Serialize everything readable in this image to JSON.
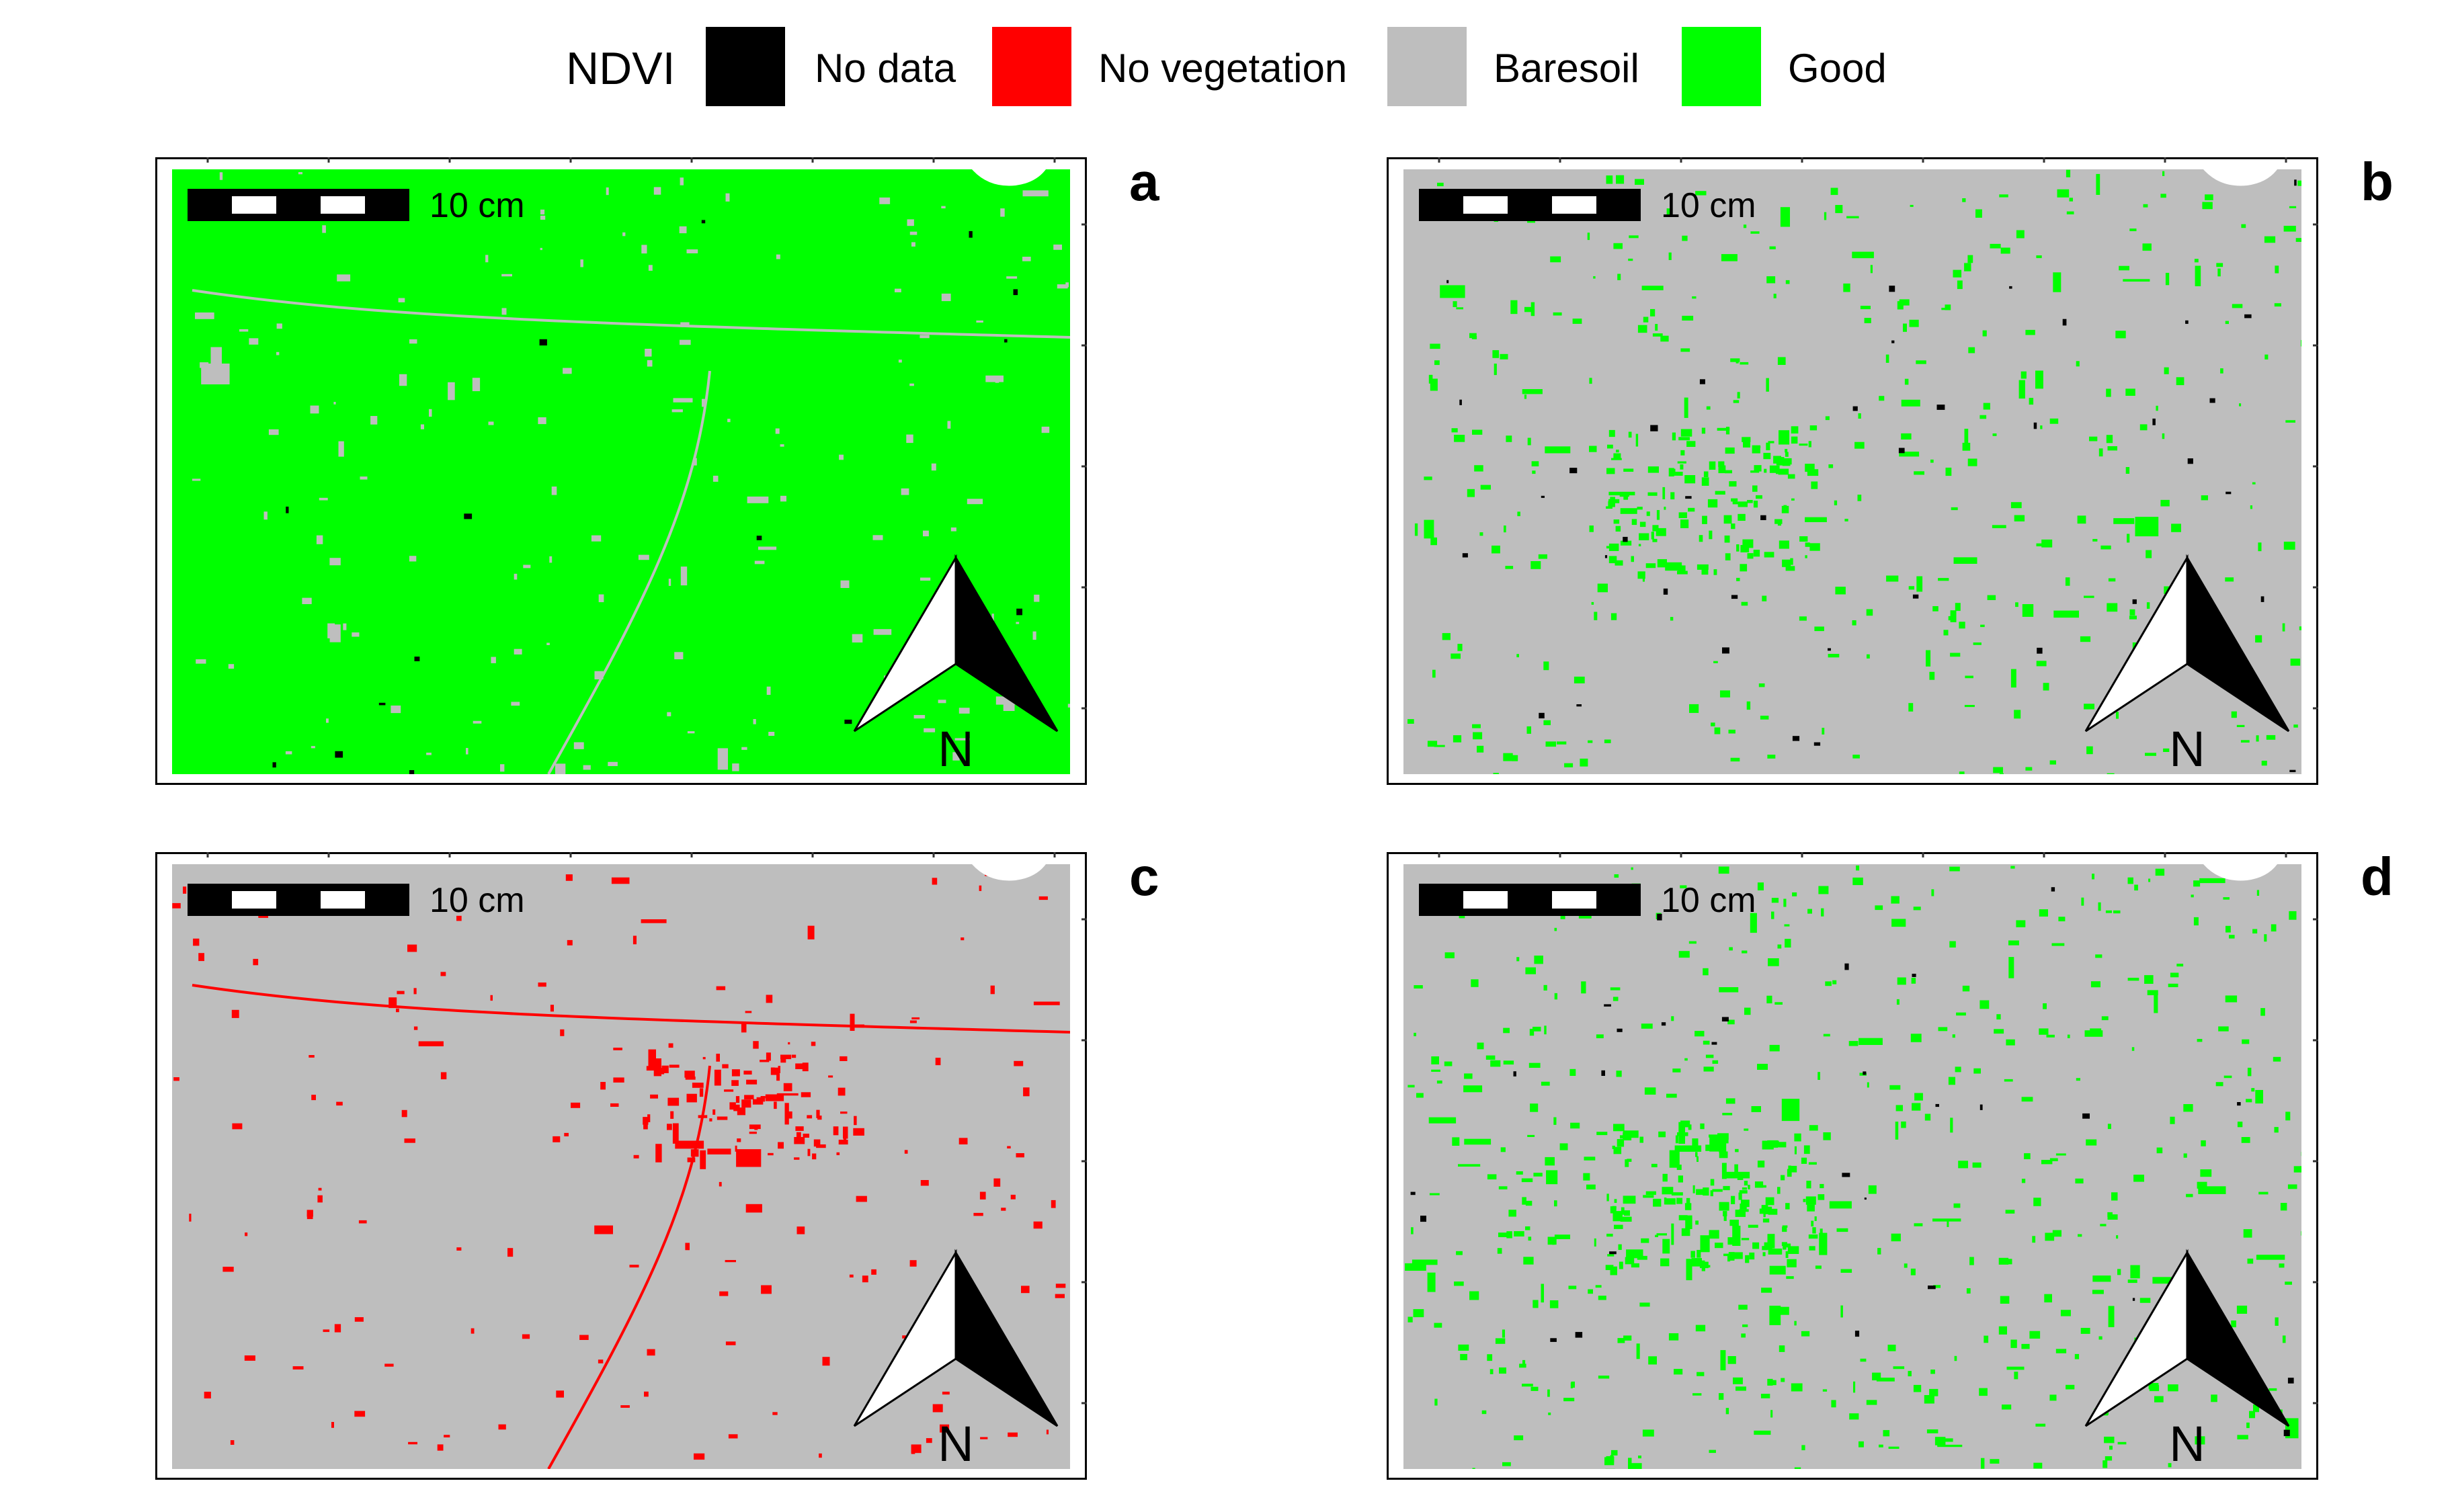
{
  "legend": {
    "title": "NDVI",
    "items": [
      {
        "label": "No data",
        "color": "#000000"
      },
      {
        "label": "No vegetation",
        "color": "#ff0000"
      },
      {
        "label": "Baresoil",
        "color": "#bebebe"
      },
      {
        "label": "Good",
        "color": "#00ff00"
      }
    ]
  },
  "scale_bar_label": "10 cm",
  "north_label": "N",
  "panels": [
    {
      "letter": "a",
      "base": "#00ff00",
      "patch": "#bebebe",
      "patch_frac": 0.04,
      "nodata_frac": 0.004
    },
    {
      "letter": "b",
      "base": "#bebebe",
      "patch": "#00ff00",
      "patch_frac": 0.12,
      "nodata_frac": 0.01
    },
    {
      "letter": "c",
      "base": "#bebebe",
      "patch": "#ff0000",
      "patch_frac": 0.06,
      "nodata_frac": 0.0
    },
    {
      "letter": "d",
      "base": "#bebebe",
      "patch": "#00ff00",
      "patch_frac": 0.16,
      "nodata_frac": 0.008
    }
  ]
}
